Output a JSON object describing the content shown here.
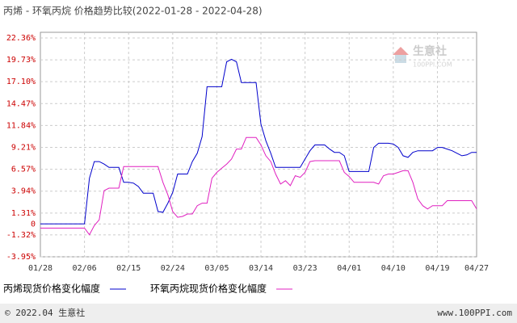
{
  "chart_data": {
    "type": "line",
    "title": "丙烯 - 环氧丙烷 价格趋势比较(2022-01-28 - 2022-04-28)",
    "categories": [
      "01/28",
      null,
      null,
      null,
      null,
      null,
      null,
      null,
      null,
      "02/06",
      null,
      null,
      null,
      null,
      null,
      null,
      null,
      null,
      "02/15",
      null,
      null,
      null,
      null,
      null,
      null,
      null,
      null,
      "02/24",
      null,
      null,
      null,
      null,
      null,
      null,
      null,
      null,
      "03/05",
      null,
      null,
      null,
      null,
      null,
      null,
      null,
      null,
      "03/14",
      null,
      null,
      null,
      null,
      null,
      null,
      null,
      null,
      "03/23",
      null,
      null,
      null,
      null,
      null,
      null,
      null,
      null,
      "04/01",
      null,
      null,
      null,
      null,
      null,
      null,
      null,
      null,
      "04/10",
      null,
      null,
      null,
      null,
      null,
      null,
      null,
      null,
      "04/19",
      null,
      null,
      null,
      null,
      null,
      null,
      null,
      "04/27"
    ],
    "series": [
      {
        "name": "丙烯现货价格变化幅度",
        "color": "#0000cc",
        "values": [
          0,
          0,
          0,
          0,
          0,
          0,
          0,
          0,
          0,
          0,
          5.5,
          7.5,
          7.5,
          7.2,
          6.8,
          6.8,
          6.8,
          5,
          5,
          4.9,
          4.5,
          3.7,
          3.7,
          3.7,
          1.5,
          1.4,
          2.5,
          3.8,
          6,
          6,
          6,
          7.5,
          8.5,
          10.5,
          16.5,
          16.5,
          16.5,
          16.5,
          19.5,
          19.8,
          19.5,
          17,
          17,
          17,
          17,
          12,
          10,
          8.5,
          6.8,
          6.8,
          6.8,
          6.8,
          6.8,
          6.8,
          7.8,
          8.8,
          9.5,
          9.5,
          9.5,
          9,
          8.6,
          8.6,
          8.2,
          6.3,
          6.3,
          6.3,
          6.3,
          6.3,
          9.2,
          9.7,
          9.7,
          9.7,
          9.6,
          9.2,
          8.2,
          8,
          8.6,
          8.8,
          8.8,
          8.8,
          8.8,
          9.2,
          9.2,
          9,
          8.8,
          8.5,
          8.2,
          8.3,
          8.6,
          8.6
        ]
      },
      {
        "name": "环氧丙烷现货价格变化幅度",
        "color": "#e020c0",
        "values": [
          -0.5,
          -0.5,
          -0.5,
          -0.5,
          -0.5,
          -0.5,
          -0.5,
          -0.5,
          -0.5,
          -0.5,
          -1.3,
          -0.2,
          0.5,
          4,
          4.3,
          4.3,
          4.3,
          6.9,
          6.9,
          6.9,
          6.9,
          6.9,
          6.9,
          6.9,
          6.9,
          5,
          3.5,
          1.5,
          0.8,
          0.9,
          1.2,
          1.2,
          2.2,
          2.5,
          2.5,
          5.5,
          6.2,
          6.7,
          7.2,
          7.8,
          9,
          9,
          10.4,
          10.4,
          10.4,
          9.5,
          8.2,
          7.5,
          6,
          4.8,
          5.2,
          4.6,
          5.8,
          5.6,
          6.2,
          7.5,
          7.6,
          7.6,
          7.6,
          7.6,
          7.6,
          7.6,
          6.2,
          5.7,
          5,
          5,
          5,
          5,
          5,
          4.8,
          5.8,
          6,
          6,
          6.2,
          6.4,
          6.4,
          5,
          3,
          2.2,
          1.8,
          2.2,
          2.2,
          2.2,
          2.8,
          2.8,
          2.8,
          2.8,
          2.8,
          2.8,
          1.8
        ]
      }
    ],
    "ylim": [
      -3.95,
      22.36
    ],
    "yticks": [
      {
        "value": -3.95,
        "label": "-3.95%"
      },
      {
        "value": -1.32,
        "label": "-1.32%"
      },
      0,
      {
        "value": 1.31,
        "label": "1.31%"
      },
      {
        "value": 3.94,
        "label": "3.94%"
      },
      {
        "value": 6.57,
        "label": "6.57%"
      },
      {
        "value": 9.21,
        "label": "9.21%"
      },
      {
        "value": 11.84,
        "label": "11.84%"
      },
      {
        "value": 14.47,
        "label": "14.47%"
      },
      {
        "value": 17.1,
        "label": "17.10%"
      },
      {
        "value": 19.73,
        "label": "19.73%"
      },
      {
        "value": 22.36,
        "label": "22.36%"
      }
    ],
    "grid": true,
    "watermark": {
      "brand": "生意社",
      "site": "100PPI.COM"
    },
    "footer": {
      "left": "© 2022.04 生意社",
      "right": "www.100PPI.com"
    }
  }
}
